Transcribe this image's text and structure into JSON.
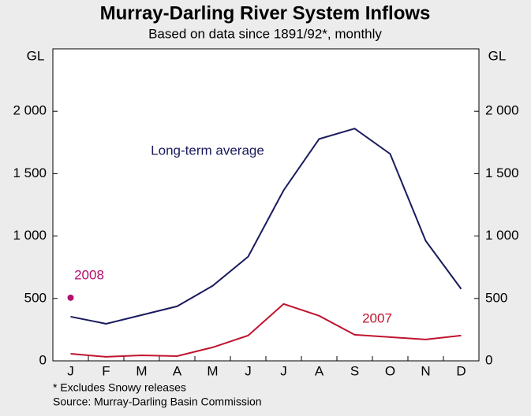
{
  "chart_data": {
    "type": "line",
    "title": "Murray-Darling River System Inflows",
    "subtitle": "Based on data since 1891/92*, monthly",
    "y_label": "GL",
    "y2_label": "GL",
    "categories": [
      "J",
      "F",
      "M",
      "A",
      "M",
      "J",
      "J",
      "A",
      "S",
      "O",
      "N",
      "D"
    ],
    "series": [
      {
        "name": "Long-term average",
        "color": "#1a1a5e",
        "values": [
          354,
          297,
          367,
          437,
          601,
          835,
          1367,
          1778,
          1861,
          1658,
          962,
          576
        ]
      },
      {
        "name": "2007",
        "color": "#c0152f",
        "values": [
          57,
          32,
          44,
          38,
          108,
          203,
          456,
          361,
          209,
          190,
          171,
          203
        ]
      },
      {
        "name": "2008",
        "color": "#b5106e",
        "values": [
          506,
          null,
          null,
          null,
          null,
          null,
          null,
          null,
          null,
          null,
          null,
          null
        ]
      }
    ],
    "ylim": [
      0,
      2500
    ],
    "yticks": [
      0,
      500,
      {
        "value": 1000,
        "label": "1 000"
      },
      {
        "value": 1500,
        "label": "1 500"
      },
      {
        "value": 2000,
        "label": "2 000"
      }
    ],
    "notes": [
      "*   Excludes Snowy releases",
      "Source: Murray-Darling Basin Commission"
    ]
  }
}
